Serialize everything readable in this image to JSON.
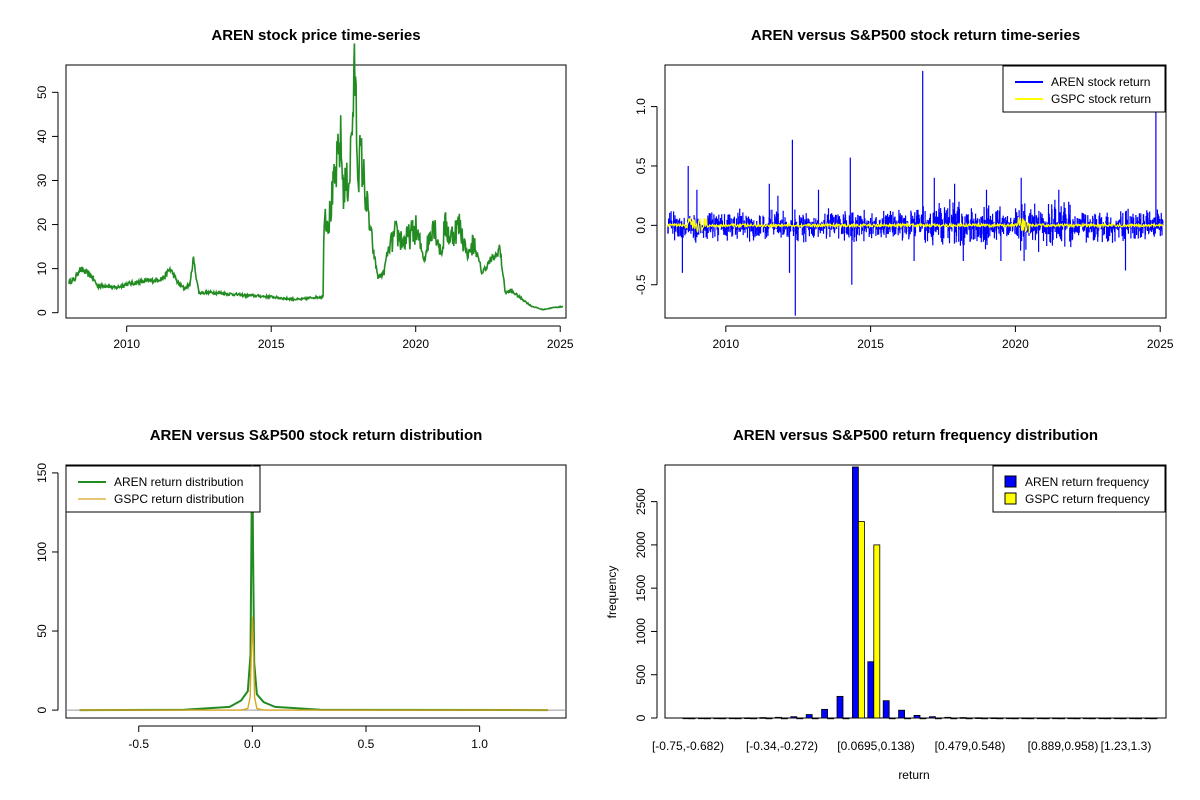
{
  "chart_data": [
    {
      "type": "line",
      "title": "AREN stock price time-series",
      "xlabel": "",
      "ylabel": "",
      "xlim": [
        2007.9,
        2025.2
      ],
      "ylim": [
        0,
        55
      ],
      "x_ticks": [
        "2010",
        "2015",
        "2020",
        "2025"
      ],
      "y_ticks": [
        "0",
        "10",
        "20",
        "30",
        "40",
        "50"
      ],
      "colors": {
        "line": "#228B22"
      },
      "series": [
        {
          "name": "AREN",
          "x": [
            2008.0,
            2008.2,
            2008.35,
            2008.5,
            2008.8,
            2009.0,
            2009.3,
            2009.6,
            2010.0,
            2010.5,
            2011.0,
            2011.3,
            2011.5,
            2011.8,
            2012.0,
            2012.2,
            2012.3,
            2012.5,
            2013.0,
            2014.0,
            2015.0,
            2015.5,
            2016.0,
            2016.5,
            2016.8,
            2016.82,
            2017.0,
            2017.2,
            2017.4,
            2017.5,
            2017.7,
            2017.9,
            2018.0,
            2018.1,
            2018.3,
            2018.5,
            2018.7,
            2018.9,
            2019.0,
            2019.3,
            2019.6,
            2020.0,
            2020.3,
            2020.6,
            2020.9,
            2021.0,
            2021.2,
            2021.5,
            2021.8,
            2022.0,
            2022.3,
            2022.6,
            2022.8,
            2022.9,
            2023.1,
            2023.3,
            2023.6,
            2024.0,
            2024.4,
            2024.8,
            2025.1
          ],
          "values": [
            7,
            7.5,
            9.8,
            9.5,
            8.2,
            6,
            6.2,
            5.6,
            6.5,
            7,
            7.4,
            8,
            10,
            6.5,
            5.5,
            6.5,
            12.5,
            4.5,
            4.6,
            4,
            3.6,
            3.2,
            3,
            3.5,
            3.6,
            23,
            21,
            30,
            39,
            28,
            30,
            55,
            32,
            36,
            25,
            15,
            8,
            9,
            13,
            18,
            16,
            19,
            12,
            21,
            13,
            20,
            17,
            20,
            13,
            16,
            9,
            12,
            13,
            15,
            4.5,
            5,
            3.5,
            1.5,
            0.7,
            1.2,
            1.4
          ]
        }
      ]
    },
    {
      "type": "line",
      "title": "AREN versus S&P500 stock return time-series",
      "xlabel": "",
      "ylabel": "",
      "xlim": [
        2007.9,
        2025.2
      ],
      "ylim": [
        -0.78,
        1.35
      ],
      "x_ticks": [
        "2010",
        "2015",
        "2020",
        "2025"
      ],
      "y_ticks": [
        "-0.5",
        "0.0",
        "0.5",
        "1.0"
      ],
      "legend": [
        "AREN stock return",
        "GSPC stock return"
      ],
      "colors": {
        "aren": "#0000FF",
        "gspc": "#FFFF00"
      },
      "series": [
        {
          "name": "AREN stock return",
          "spikes": [
            [
              2008.5,
              -0.4
            ],
            [
              2008.7,
              0.5
            ],
            [
              2009.0,
              0.3
            ],
            [
              2011.5,
              0.35
            ],
            [
              2011.8,
              0.25
            ],
            [
              2012.2,
              -0.4
            ],
            [
              2012.3,
              0.72
            ],
            [
              2012.4,
              -0.76
            ],
            [
              2013.2,
              0.3
            ],
            [
              2014.3,
              0.57
            ],
            [
              2014.35,
              -0.5
            ],
            [
              2016.5,
              -0.3
            ],
            [
              2016.8,
              1.3
            ],
            [
              2017.2,
              0.4
            ],
            [
              2017.9,
              0.35
            ],
            [
              2018.2,
              -0.3
            ],
            [
              2019.0,
              0.3
            ],
            [
              2019.5,
              -0.3
            ],
            [
              2020.2,
              0.4
            ],
            [
              2020.3,
              -0.3
            ],
            [
              2021.5,
              0.3
            ],
            [
              2023.8,
              -0.38
            ],
            [
              2024.85,
              0.95
            ]
          ]
        },
        {
          "name": "GSPC stock return",
          "spikes": [
            [
              2008.8,
              0.1
            ],
            [
              2008.85,
              -0.09
            ],
            [
              2020.2,
              0.09
            ],
            [
              2020.25,
              -0.1
            ]
          ]
        }
      ]
    },
    {
      "type": "line",
      "title": "AREN versus S&P500 stock return distribution",
      "xlabel": "",
      "ylabel": "",
      "xlim": [
        -0.82,
        1.38
      ],
      "ylim": [
        -5,
        155
      ],
      "x_ticks": [
        "-0.5",
        "0.0",
        "0.5",
        "1.0"
      ],
      "y_ticks": [
        "0",
        "50",
        "100",
        "150"
      ],
      "legend": [
        "AREN return distribution",
        "GSPC return distribution"
      ],
      "colors": {
        "aren": "#228B22",
        "gspc": "#DAA520"
      },
      "series": [
        {
          "name": "AREN return distribution",
          "x": [
            -0.76,
            -0.3,
            -0.1,
            -0.05,
            -0.02,
            -0.008,
            -0.003,
            0.0,
            0.003,
            0.008,
            0.02,
            0.05,
            0.1,
            0.3,
            1.3
          ],
          "values": [
            0,
            0.2,
            2,
            6,
            12,
            35,
            130,
            160,
            105,
            30,
            10,
            5,
            2,
            0.2,
            0
          ]
        },
        {
          "name": "GSPC return distribution",
          "x": [
            -0.76,
            -0.05,
            -0.02,
            -0.01,
            -0.004,
            0.0,
            0.004,
            0.01,
            0.02,
            0.05,
            1.3
          ],
          "values": [
            0,
            0,
            1,
            8,
            40,
            59,
            40,
            8,
            1,
            0,
            0
          ]
        }
      ]
    },
    {
      "type": "bar",
      "title": "AREN versus S&P500 return frequency distribution",
      "xlabel": "return",
      "ylabel": "frequency",
      "ylim": [
        0,
        2900
      ],
      "y_ticks": [
        "0",
        "500",
        "1000",
        "1500",
        "2000",
        "2500"
      ],
      "category_labels_shown": [
        "[-0.75,-0.682)",
        "[-0.34,-0.272)",
        "[0.0695,0.138)",
        "[0.479,0.548)",
        "[0.889,0.958)",
        "[1.23,1.3)"
      ],
      "legend": [
        "AREN return frequency",
        "GSPC return frequency"
      ],
      "colors": {
        "aren": "#0000FF",
        "gspc": "#FFFF00"
      },
      "series": [
        {
          "name": "AREN return frequency",
          "values": [
            1,
            1,
            1,
            1,
            2,
            5,
            8,
            15,
            40,
            100,
            250,
            2900,
            650,
            200,
            90,
            30,
            15,
            8,
            5,
            3,
            2,
            1,
            1,
            1,
            1,
            1,
            1,
            1,
            1,
            1,
            1
          ]
        },
        {
          "name": "GSPC return frequency",
          "values": [
            0,
            0,
            0,
            0,
            0,
            0,
            0,
            0,
            0,
            0,
            0,
            2270,
            2000,
            0,
            0,
            0,
            0,
            0,
            0,
            0,
            0,
            0,
            0,
            0,
            0,
            0,
            0,
            0,
            0,
            0,
            0
          ]
        }
      ]
    }
  ]
}
